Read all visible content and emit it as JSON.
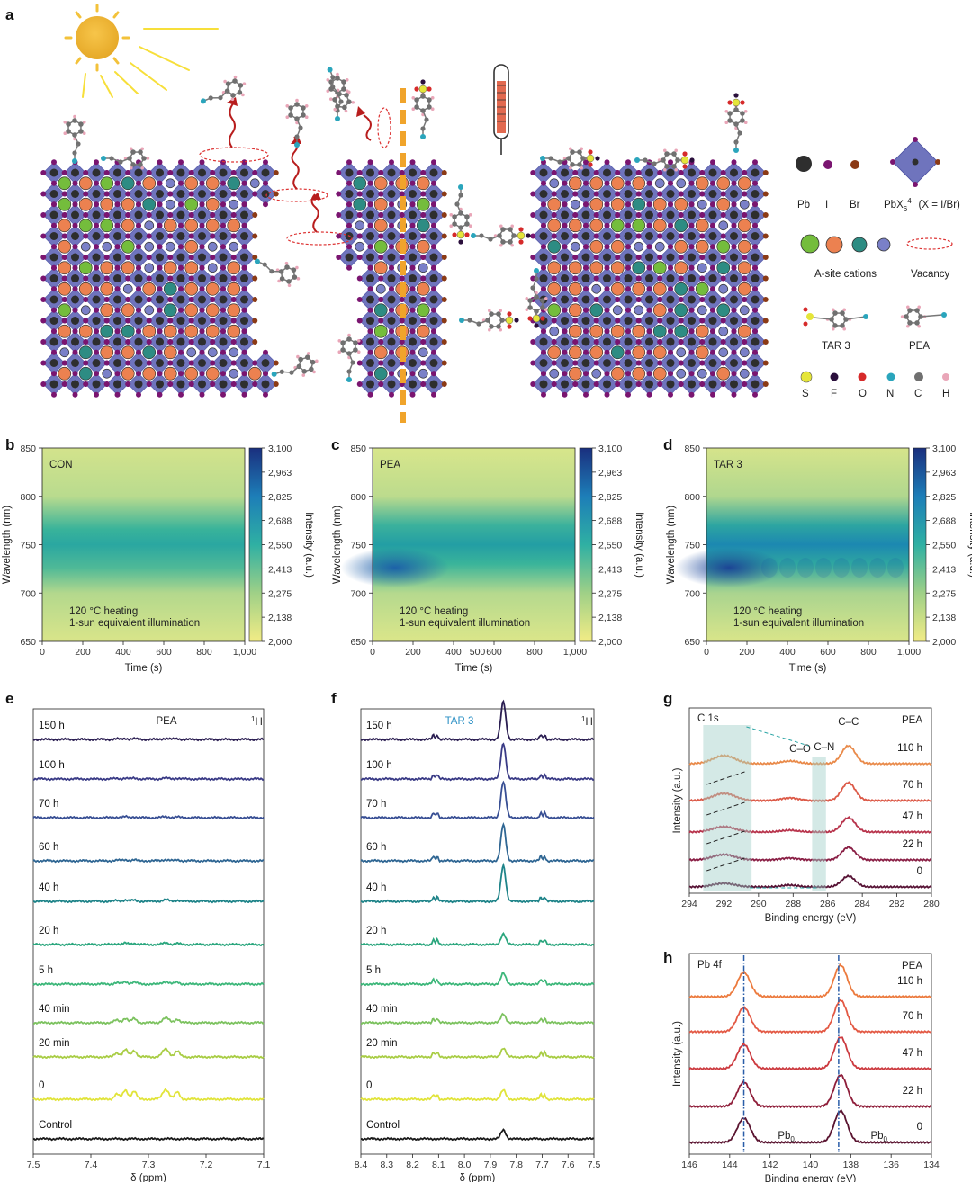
{
  "panel_labels": [
    "a",
    "b",
    "c",
    "d",
    "e",
    "f",
    "g",
    "h"
  ],
  "legend": {
    "atom_labels": [
      "Pb",
      "I",
      "Br"
    ],
    "octahedron_label": "PbX",
    "octahedron_sup": "4−",
    "octahedron_sub": "6",
    "octahedron_note": " (X = I/Br)",
    "asite_label": "A-site cations",
    "vacancy_label": "Vacancy",
    "molecule_labels": [
      "TAR 3",
      "PEA"
    ],
    "element_labels": [
      "S",
      "F",
      "O",
      "N",
      "C",
      "H"
    ],
    "colors": {
      "Pb": "#2e2e2e",
      "I": "#7a1570",
      "Br": "#8b3a15",
      "octa": "#6f74bd",
      "asite": [
        "#74bd3c",
        "#ec8150",
        "#2d8c83",
        "#7a80c8"
      ],
      "S": "#e5e53a",
      "F": "#2a0f3c",
      "O": "#d62a2a",
      "N": "#2aa5bc",
      "C": "#707070",
      "H": "#e9a6b8"
    }
  },
  "heatmaps": {
    "ylabel": "Wavelength (nm)",
    "xlabel": "Time (s)",
    "cbar_label": "Intensity (a.u.)",
    "cbar_ticks": [
      "3,100",
      "2,963",
      "2,825",
      "2,688",
      "2,550",
      "2,413",
      "2,275",
      "2,138",
      "2,000"
    ],
    "yticks": [
      "850",
      "800",
      "750",
      "700",
      "650"
    ],
    "xticks_bd": [
      "0",
      "200",
      "400",
      "600",
      "800",
      "1,000"
    ],
    "xticks_c": [
      "0",
      "200",
      "400",
      "600",
      "800",
      "1,000"
    ],
    "xticks_c_extra": [
      "500"
    ],
    "condition_1": "120 °C heating",
    "condition_2": "1-sun equivalent illumination",
    "samples": [
      "CON",
      "PEA",
      "TAR 3"
    ]
  },
  "nmr": {
    "xlabel": "δ (ppm)",
    "nucleus": "1H",
    "e_title": "PEA",
    "f_title": "TAR 3",
    "e_xticks": [
      "7.5",
      "7.4",
      "7.3",
      "7.2",
      "7.1"
    ],
    "f_xticks": [
      "8.4",
      "8.3",
      "8.2",
      "8.1",
      "8.0",
      "7.9",
      "7.8",
      "7.7",
      "7.6",
      "7.5"
    ],
    "trace_labels": [
      "150 h",
      "100 h",
      "70 h",
      "60 h",
      "40 h",
      "20 h",
      "5 h",
      "40 min",
      "20 min",
      "0",
      "Control"
    ]
  },
  "xps": {
    "xlabel": "Binding energy (eV)",
    "ylabel": "Intensity (a.u.)",
    "g_title": "C 1s",
    "g_sample": "PEA",
    "g_peaks": [
      "C–C",
      "C–O",
      "C–N"
    ],
    "g_xticks": [
      "294",
      "292",
      "290",
      "288",
      "286",
      "284",
      "282",
      "280"
    ],
    "g_traces": [
      "110 h",
      "70 h",
      "47 h",
      "22 h",
      "0"
    ],
    "h_title": "Pb 4f",
    "h_sample": "PEA",
    "h_xticks": [
      "146",
      "144",
      "142",
      "140",
      "138",
      "136",
      "134"
    ],
    "h_traces": [
      "110 h",
      "70 h",
      "47 h",
      "22 h",
      "0"
    ],
    "h_pb0": "Pb0"
  }
}
